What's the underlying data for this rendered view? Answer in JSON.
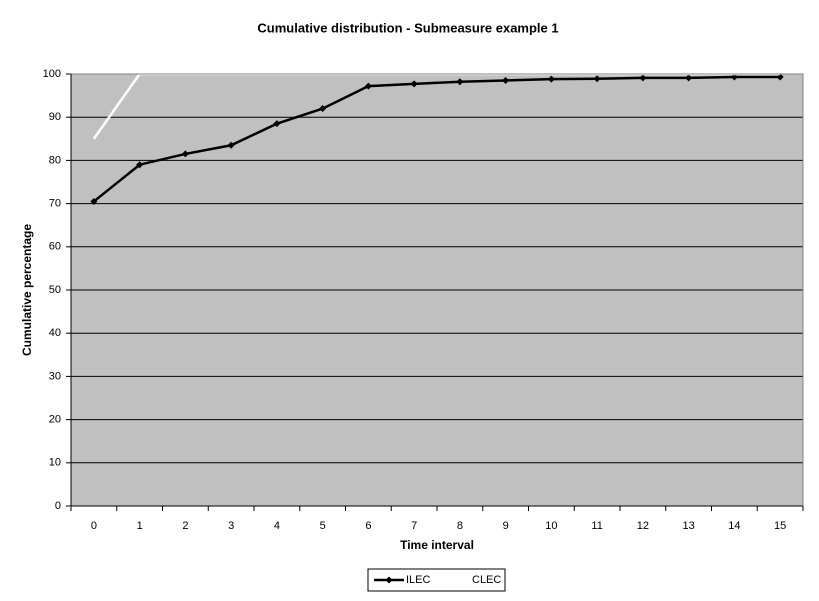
{
  "chart_data": {
    "type": "line",
    "title": "Cumulative distribution - Submeasure example 1",
    "x_label": "Time interval",
    "y_label": "Cumulative percentage",
    "categories": [
      "0",
      "1",
      "2",
      "3",
      "4",
      "5",
      "6",
      "7",
      "8",
      "9",
      "10",
      "11",
      "12",
      "13",
      "14",
      "15"
    ],
    "series": [
      {
        "name": "ILEC",
        "color": "#000000",
        "values": [
          70.5,
          79,
          81.5,
          83.5,
          88.5,
          92,
          97.2,
          97.7,
          98.2,
          98.5,
          98.8,
          98.9,
          99.1,
          99.1,
          99.3,
          99.3
        ]
      },
      {
        "name": "CLEC",
        "color": "#ffffff",
        "values": [
          85,
          100,
          100,
          100,
          100,
          100,
          100,
          100,
          100,
          100,
          100,
          100,
          100,
          100,
          100,
          100
        ]
      }
    ],
    "ylim": [
      0,
      100
    ],
    "yticks": [
      0,
      10,
      20,
      30,
      40,
      50,
      60,
      70,
      80,
      90,
      100
    ],
    "grid": true,
    "legend": "bottom"
  }
}
